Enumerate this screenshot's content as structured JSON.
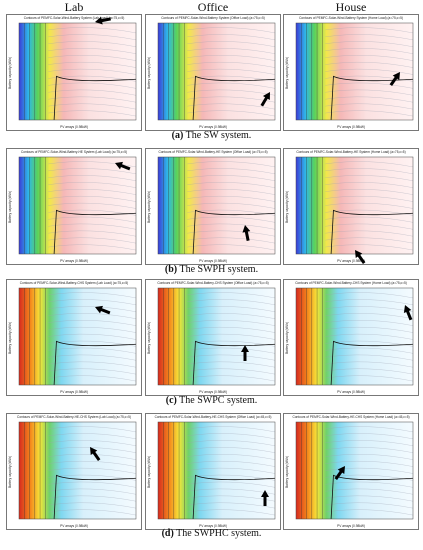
{
  "columns": [
    "Lab",
    "Office",
    "House"
  ],
  "rows": [
    {
      "caption_label": "(a)",
      "caption_text": " The SW system.",
      "titles": [
        "Contours of PEMFC-Solar-Wind-Battery System (Lab Load) (a=75,c=5)",
        "Contours of PEMFC-Solar-Wind-Battery System (Office Load) (a=75,c=5)",
        "Contours of PEMFC-Solar-Wind-Battery System (Home Load) (a=75,c=5)"
      ],
      "scheme": "warm"
    },
    {
      "caption_label": "(b)",
      "caption_text": " The SWPH system.",
      "titles": [
        "Contours of PEMFC-Solar-Wind-Battery-HE System (Lab Load) (a=75,c=5)",
        "Contours of PEMFC-Solar-Wind-Battery-HE System (Office Load) (a=75,c=5)",
        "Contours of PEMFC-Solar-Wind-Battery-HE System (Home Load) (a=75,c=5)"
      ],
      "scheme": "warm"
    },
    {
      "caption_label": "(c)",
      "caption_text": " The SWPC system.",
      "titles": [
        "Contours of PEMFC-Solar-Wind-Battery-CHS System (Lab Load) (a=75,c=5)",
        "Contours of PEMFC-Solar-Wind-Battery-CHS System (Office Load) (a=75,c=5)",
        "Contours of PEMFC-Solar-Wind-Battery-CHS System (Home Load) (a=75,c=5)"
      ],
      "scheme": "cool"
    },
    {
      "caption_label": "(d)",
      "caption_text": " The SWPHC system.",
      "titles": [
        "Contours of PEMFC-Solar-Wind-Battery-HE-CHS System (Lab Load) (a=75,c=5)",
        "Contours of PEMFC-Solar-Wind-Battery-HE-CHS System (Office Load) (a=45,c=5)",
        "Contours of PEMFC-Solar-Wind-Battery-HE-CHS System (Home Load) (a=45,c=5)"
      ],
      "scheme": "cool"
    }
  ],
  "axis": {
    "xlabel": "PV arrays (0.98kW)",
    "ylabel": "Battery capacity (kWh)"
  }
}
